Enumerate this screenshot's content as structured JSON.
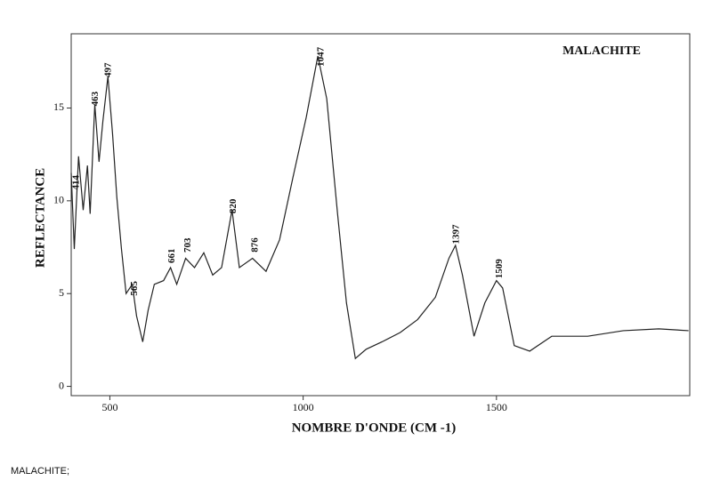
{
  "chart_data": {
    "type": "line",
    "title": "MALACHITE",
    "caption": "MALACHITE;",
    "x_label": "NOMBRE D'ONDE (CM -1)",
    "y_label": "REFLECTANCE",
    "x": [
      400,
      408,
      419,
      431,
      442,
      449,
      461,
      472,
      482,
      495,
      507,
      518,
      530,
      542,
      558,
      569,
      585,
      599,
      615,
      639,
      657,
      673,
      696,
      719,
      743,
      766,
      789,
      816,
      835,
      869,
      904,
      939,
      973,
      1008,
      1038,
      1061,
      1089,
      1112,
      1135,
      1163,
      1204,
      1251,
      1296,
      1342,
      1377,
      1394,
      1412,
      1442,
      1470,
      1500,
      1516,
      1546,
      1586,
      1643,
      1736,
      1828,
      1920,
      1997
    ],
    "series": [
      {
        "color": "#222222",
        "values": [
          11.5,
          7.4,
          12.4,
          9.5,
          11.9,
          9.3,
          15.2,
          12.1,
          14.3,
          16.7,
          13.6,
          10.2,
          7.4,
          5.0,
          5.5,
          3.8,
          2.4,
          4.1,
          5.5,
          5.7,
          6.4,
          5.5,
          6.9,
          6.4,
          7.2,
          6.0,
          6.4,
          9.5,
          6.4,
          6.9,
          6.2,
          7.9,
          11.2,
          14.5,
          17.8,
          15.5,
          9.3,
          4.5,
          1.5,
          2.0,
          2.4,
          2.9,
          3.6,
          4.8,
          6.9,
          7.6,
          6.0,
          2.7,
          4.5,
          5.7,
          5.3,
          2.2,
          1.9,
          2.7,
          2.7,
          3.0,
          3.1,
          3.0
        ]
      }
    ],
    "annotations": [
      414,
      463,
      497,
      565,
      661,
      703,
      820,
      876,
      1047,
      1397,
      1509
    ],
    "xlim": [
      400,
      2000
    ],
    "ylim": [
      -0.5,
      19
    ],
    "xticks": [
      500,
      1000,
      1500
    ],
    "yticks": [
      0,
      5,
      10,
      15
    ]
  }
}
